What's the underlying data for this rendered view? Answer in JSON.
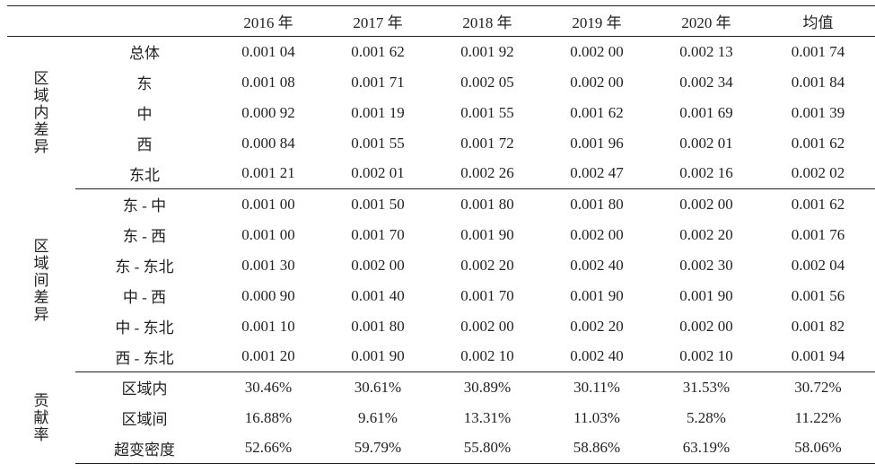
{
  "header": [
    "",
    "",
    "2016 年",
    "2017 年",
    "2018 年",
    "2019 年",
    "2020 年",
    "均值"
  ],
  "groups": [
    {
      "label": "区域内差异",
      "label_chars": [
        "区",
        "域",
        "内",
        "差",
        "异"
      ],
      "rows": [
        {
          "name": "总体",
          "values": [
            "0.001 04",
            "0.001 62",
            "0.001 92",
            "0.002 00",
            "0.002 13",
            "0.001 74"
          ]
        },
        {
          "name": "东",
          "values": [
            "0.001 08",
            "0.001 71",
            "0.002 05",
            "0.002 00",
            "0.002 34",
            "0.001 84"
          ]
        },
        {
          "name": "中",
          "values": [
            "0.000 92",
            "0.001 19",
            "0.001 55",
            "0.001 62",
            "0.001 69",
            "0.001 39"
          ]
        },
        {
          "name": "西",
          "values": [
            "0.000 84",
            "0.001 55",
            "0.001 72",
            "0.001 96",
            "0.002 01",
            "0.001 62"
          ]
        },
        {
          "name": "东北",
          "values": [
            "0.001 21",
            "0.002 01",
            "0.002 26",
            "0.002 47",
            "0.002 16",
            "0.002 02"
          ]
        }
      ]
    },
    {
      "label": "区域间差异",
      "label_chars": [
        "区",
        "域",
        "间",
        "差",
        "异"
      ],
      "rows": [
        {
          "name": "东 - 中",
          "values": [
            "0.001 00",
            "0.001 50",
            "0.001 80",
            "0.001 80",
            "0.002 00",
            "0.001 62"
          ]
        },
        {
          "name": "东 - 西",
          "values": [
            "0.001 00",
            "0.001 70",
            "0.001 90",
            "0.002 00",
            "0.002 20",
            "0.001 76"
          ]
        },
        {
          "name": "东 - 东北",
          "values": [
            "0.001 30",
            "0.002 00",
            "0.002 20",
            "0.002 40",
            "0.002 30",
            "0.002 04"
          ]
        },
        {
          "name": "中 - 西",
          "values": [
            "0.000 90",
            "0.001 40",
            "0.001 70",
            "0.001 90",
            "0.001 90",
            "0.001 56"
          ]
        },
        {
          "name": "中 - 东北",
          "values": [
            "0.001 10",
            "0.001 80",
            "0.002 00",
            "0.002 20",
            "0.002 00",
            "0.001 82"
          ]
        },
        {
          "name": "西 - 东北",
          "values": [
            "0.001 20",
            "0.001 90",
            "0.002 10",
            "0.002 40",
            "0.002 10",
            "0.001 94"
          ]
        }
      ]
    },
    {
      "label": "贡献率",
      "label_chars": [
        "贡",
        "献",
        "率"
      ],
      "rows": [
        {
          "name": "区域内",
          "values": [
            "30.46%",
            "30.61%",
            "30.89%",
            "30.11%",
            "31.53%",
            "30.72%"
          ]
        },
        {
          "name": "区域间",
          "values": [
            "16.88%",
            "9.61%",
            "13.31%",
            "11.03%",
            "5.28%",
            "11.22%"
          ]
        },
        {
          "name": "超变密度",
          "values": [
            "52.66%",
            "59.79%",
            "55.80%",
            "58.86%",
            "63.19%",
            "58.06%"
          ]
        }
      ]
    }
  ]
}
